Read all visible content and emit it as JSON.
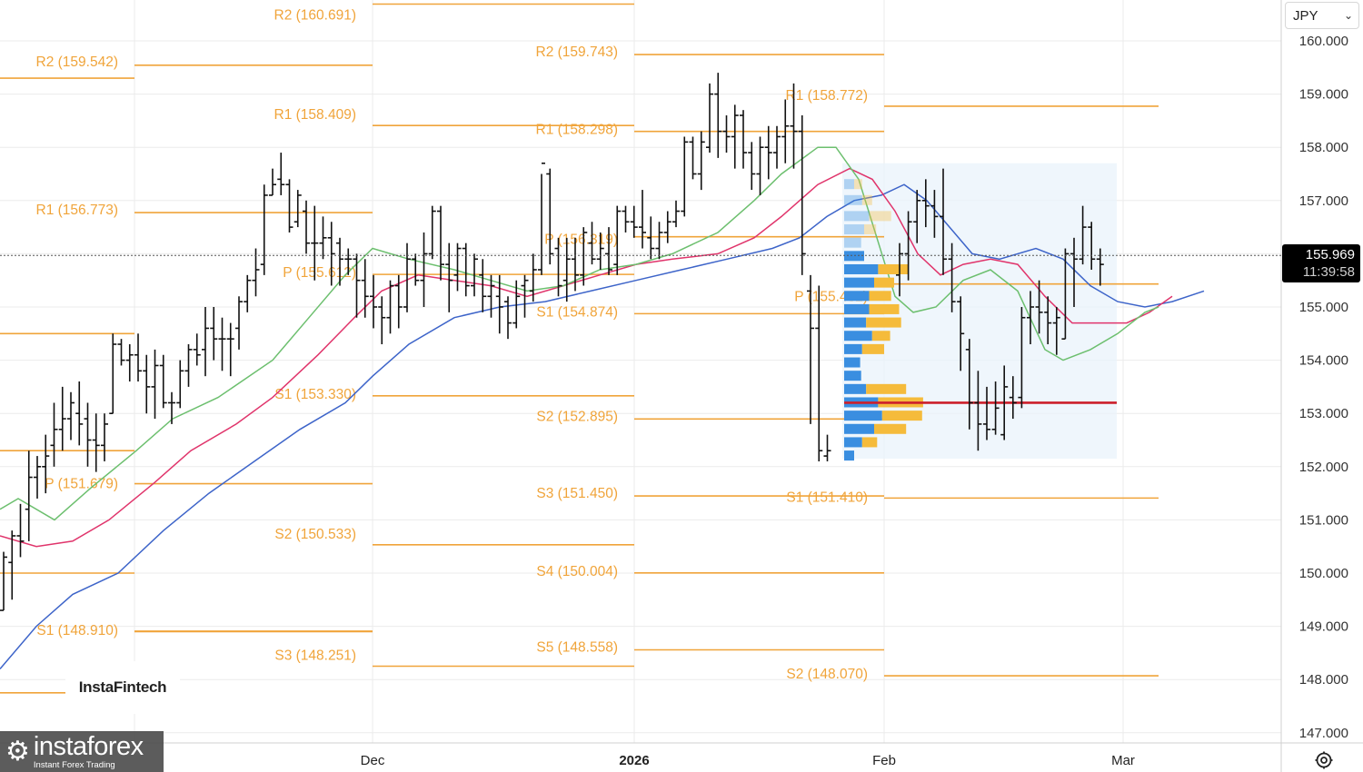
{
  "toolbar": {
    "currency_label": "JPY"
  },
  "current_price": {
    "price": "155.969",
    "countdown": "11:39:58",
    "value": 155.969
  },
  "watermark": {
    "logo": "InstaFintech",
    "brand": "instaforex",
    "tagline": "Instant Forex Trading"
  },
  "icons": {
    "settings": "settings-icon",
    "dropdown": "chevron-down-icon",
    "brand": "gear-logo-icon"
  },
  "colors": {
    "pivot": "#f0a43a",
    "bar": "#111111",
    "ma_fast": "#6cbf6e",
    "ma_mid": "#e0346b",
    "ma_slow": "#3d64c9",
    "poc": "#cc1f2a",
    "vp_buy": "#3a8ee0",
    "vp_sell": "#f5bb3b"
  },
  "chart_data": {
    "type": "ohlc",
    "ylim": [
      146.85,
      161.0
    ],
    "y_ticks": [
      "160.000",
      "159.000",
      "158.000",
      "157.000",
      "156.000",
      "155.000",
      "154.000",
      "153.000",
      "152.000",
      "151.000",
      "150.000",
      "149.000",
      "148.000",
      "147.000"
    ],
    "x_ticks": [
      "Dec",
      "2026",
      "Feb",
      "Mar"
    ],
    "pivot_levels": [
      {
        "label": "R2 (160.691)",
        "value": 160.691
      },
      {
        "label": "R2 (159.542)",
        "value": 159.542
      },
      {
        "label": "R1 (158.409)",
        "value": 158.409
      },
      {
        "label": "R1 (156.773)",
        "value": 156.773
      },
      {
        "label": "P (155.612)",
        "value": 155.612
      },
      {
        "label": "S1 (153.330)",
        "value": 153.33
      },
      {
        "label": "P (151.679)",
        "value": 151.679
      },
      {
        "label": "S2 (150.533)",
        "value": 150.533
      },
      {
        "label": "S1 (148.910)",
        "value": 148.91
      },
      {
        "label": "S3 (148.251)",
        "value": 148.251
      },
      {
        "label": "R2 (159.743)",
        "value": 159.743
      },
      {
        "label": "R1 (158.298)",
        "value": 158.298
      },
      {
        "label": "P (156.319)",
        "value": 156.319
      },
      {
        "label": "S1 (154.874)",
        "value": 154.874
      },
      {
        "label": "S2 (152.895)",
        "value": 152.895
      },
      {
        "label": "S3 (151.450)",
        "value": 151.45
      },
      {
        "label": "S4 (150.004)",
        "value": 150.004
      },
      {
        "label": "S5 (148.558)",
        "value": 148.558
      },
      {
        "label": "R1 (158.772)",
        "value": 158.772
      },
      {
        "label": "P (155.432)",
        "value": 155.432
      },
      {
        "label": "S1 (151.410)",
        "value": 151.41
      },
      {
        "label": "S2 (148.070)",
        "value": 148.07
      }
    ],
    "ohlc_bars": [
      [
        149.3,
        150.4,
        149.3,
        150.3
      ],
      [
        150.2,
        150.8,
        149.5,
        150.7
      ],
      [
        150.7,
        151.3,
        150.3,
        150.6
      ],
      [
        151.2,
        152.3,
        150.6,
        151.8
      ],
      [
        151.8,
        152.2,
        151.4,
        152.0
      ],
      [
        152.0,
        152.6,
        151.5,
        152.2
      ],
      [
        152.4,
        153.2,
        152.0,
        152.7
      ],
      [
        152.7,
        153.5,
        152.3,
        152.9
      ],
      [
        152.9,
        153.4,
        152.5,
        153.2
      ],
      [
        153.0,
        153.6,
        152.4,
        152.8
      ],
      [
        152.9,
        153.2,
        152.0,
        152.5
      ],
      [
        152.5,
        153.0,
        151.9,
        152.4
      ],
      [
        152.4,
        153.0,
        152.1,
        152.8
      ],
      [
        153.0,
        154.5,
        153.0,
        154.3
      ],
      [
        154.3,
        154.4,
        153.9,
        154.0
      ],
      [
        154.0,
        154.3,
        153.6,
        154.1
      ],
      [
        154.1,
        154.5,
        153.6,
        153.8
      ],
      [
        153.8,
        154.1,
        153.0,
        153.5
      ],
      [
        153.5,
        154.2,
        152.9,
        153.9
      ],
      [
        153.9,
        154.1,
        153.1,
        153.2
      ],
      [
        153.2,
        153.4,
        152.8,
        153.2
      ],
      [
        153.2,
        154.0,
        153.1,
        153.8
      ],
      [
        153.8,
        154.3,
        153.5,
        154.2
      ],
      [
        154.2,
        154.5,
        153.9,
        154.1
      ],
      [
        154.2,
        155.0,
        153.7,
        154.6
      ],
      [
        154.6,
        155.0,
        154.0,
        154.4
      ],
      [
        154.4,
        154.8,
        153.8,
        154.4
      ],
      [
        154.4,
        154.7,
        153.7,
        154.4
      ],
      [
        154.6,
        155.2,
        154.2,
        155.1
      ],
      [
        155.1,
        155.6,
        154.9,
        155.5
      ],
      [
        155.5,
        156.1,
        155.2,
        155.7
      ],
      [
        155.8,
        157.3,
        155.6,
        157.1
      ],
      [
        157.1,
        157.6,
        157.1,
        157.3
      ],
      [
        157.4,
        157.9,
        157.1,
        157.3
      ],
      [
        157.3,
        157.4,
        156.4,
        156.5
      ],
      [
        156.6,
        157.2,
        156.5,
        157.1
      ],
      [
        156.8,
        157.0,
        156.0,
        156.2
      ],
      [
        156.2,
        156.9,
        155.5,
        156.2
      ],
      [
        156.2,
        156.7,
        155.9,
        156.3
      ],
      [
        156.3,
        156.6,
        155.4,
        156.0
      ],
      [
        156.2,
        156.3,
        155.4,
        155.9
      ],
      [
        155.9,
        156.1,
        155.6,
        155.9
      ],
      [
        155.9,
        156.0,
        154.8,
        155.5
      ],
      [
        155.5,
        155.9,
        154.8,
        155.2
      ],
      [
        155.2,
        155.6,
        154.6,
        155.0
      ],
      [
        155.0,
        155.2,
        154.3,
        154.8
      ],
      [
        154.8,
        155.5,
        154.5,
        155.4
      ],
      [
        155.4,
        155.6,
        154.6,
        155.0
      ],
      [
        155.0,
        156.2,
        154.9,
        155.9
      ],
      [
        155.9,
        156.0,
        155.4,
        155.5
      ],
      [
        155.5,
        156.4,
        155.0,
        156.0
      ],
      [
        156.0,
        156.9,
        155.9,
        156.8
      ],
      [
        156.8,
        156.9,
        155.5,
        155.8
      ],
      [
        155.8,
        156.2,
        154.9,
        155.5
      ],
      [
        155.6,
        156.2,
        155.3,
        156.1
      ],
      [
        156.1,
        156.2,
        155.2,
        155.4
      ],
      [
        155.4,
        156.0,
        155.2,
        155.9
      ],
      [
        155.6,
        155.9,
        154.9,
        155.2
      ],
      [
        155.2,
        155.6,
        154.8,
        155.4
      ],
      [
        155.2,
        155.6,
        154.5,
        155.0
      ],
      [
        155.1,
        155.2,
        154.4,
        154.7
      ],
      [
        154.7,
        155.5,
        154.6,
        155.2
      ],
      [
        155.4,
        155.6,
        154.8,
        155.5
      ],
      [
        155.3,
        156.0,
        155.1,
        155.7
      ],
      [
        155.7,
        157.5,
        155.6,
        157.7
      ],
      [
        157.5,
        157.6,
        155.8,
        156.0
      ],
      [
        156.1,
        156.3,
        155.2,
        155.4
      ],
      [
        155.5,
        156.3,
        155.1,
        155.9
      ],
      [
        155.9,
        156.3,
        155.3,
        155.6
      ],
      [
        155.6,
        156.5,
        155.4,
        156.4
      ],
      [
        156.2,
        156.6,
        155.8,
        155.9
      ],
      [
        155.9,
        156.4,
        155.7,
        156.1
      ],
      [
        156.0,
        156.5,
        155.6,
        155.7
      ],
      [
        155.8,
        156.9,
        155.6,
        156.8
      ],
      [
        156.8,
        156.9,
        156.4,
        156.6
      ],
      [
        156.6,
        156.9,
        156.3,
        156.5
      ],
      [
        156.5,
        157.2,
        156.1,
        156.4
      ],
      [
        156.3,
        156.7,
        155.9,
        156.1
      ],
      [
        156.1,
        156.6,
        155.9,
        156.4
      ],
      [
        156.4,
        156.8,
        156.2,
        156.6
      ],
      [
        156.6,
        157.0,
        156.5,
        156.8
      ],
      [
        156.8,
        158.2,
        156.7,
        158.1
      ],
      [
        158.1,
        158.2,
        157.4,
        157.5
      ],
      [
        157.5,
        158.3,
        157.2,
        158.1
      ],
      [
        158.0,
        159.2,
        157.9,
        159.0
      ],
      [
        159.0,
        159.4,
        157.8,
        158.3
      ],
      [
        158.3,
        158.6,
        157.9,
        158.2
      ],
      [
        158.2,
        158.8,
        157.6,
        158.6
      ],
      [
        158.6,
        158.7,
        157.6,
        157.9
      ],
      [
        157.9,
        158.1,
        157.2,
        157.5
      ],
      [
        157.5,
        158.2,
        157.1,
        158.0
      ],
      [
        158.0,
        158.4,
        157.4,
        157.9
      ],
      [
        157.9,
        158.4,
        157.6,
        158.2
      ],
      [
        158.2,
        158.9,
        157.7,
        158.4
      ],
      [
        158.4,
        159.2,
        157.6,
        158.3
      ],
      [
        158.3,
        158.6,
        155.6,
        156.0
      ],
      [
        155.3,
        155.6,
        152.8,
        154.6
      ],
      [
        154.6,
        155.4,
        152.1,
        152.3
      ],
      [
        152.2,
        152.6,
        152.1,
        152.3
      ]
    ],
    "ohlc_bars_feb": [
      [
        155.6,
        156.2,
        155.2,
        156.0
      ],
      [
        156.0,
        156.8,
        155.5,
        156.6
      ],
      [
        156.6,
        157.2,
        156.2,
        157.0
      ],
      [
        157.0,
        157.4,
        156.5,
        156.9
      ],
      [
        156.9,
        157.2,
        156.3,
        156.7
      ],
      [
        156.7,
        157.6,
        155.6,
        155.9
      ],
      [
        155.9,
        156.2,
        154.9,
        155.1
      ],
      [
        155.1,
        155.2,
        153.8,
        154.5
      ],
      [
        154.2,
        154.4,
        152.7,
        153.2
      ],
      [
        153.2,
        153.8,
        152.3,
        152.8
      ],
      [
        152.8,
        153.5,
        152.5,
        152.7
      ],
      [
        152.7,
        153.6,
        152.6,
        153.1
      ],
      [
        152.6,
        153.9,
        152.5,
        153.5
      ],
      [
        153.3,
        153.7,
        152.9,
        153.2
      ],
      [
        153.3,
        155.0,
        153.1,
        154.8
      ],
      [
        154.8,
        155.3,
        154.3,
        155.0
      ],
      [
        155.0,
        155.5,
        154.5,
        154.9
      ],
      [
        154.9,
        155.2,
        154.3,
        154.7
      ],
      [
        154.7,
        155.0,
        154.1,
        154.8
      ],
      [
        154.4,
        156.1,
        154.4,
        156.0
      ],
      [
        156.0,
        156.3,
        155.0,
        155.9
      ],
      [
        155.9,
        156.9,
        155.8,
        156.5
      ],
      [
        156.5,
        156.6,
        155.7,
        155.9
      ],
      [
        155.9,
        156.1,
        155.4,
        155.8
      ]
    ],
    "ma_fast": [
      [
        0,
        151.2
      ],
      [
        20,
        151.4
      ],
      [
        60,
        151.0
      ],
      [
        100,
        151.6
      ],
      [
        150,
        152.3
      ],
      [
        190,
        152.9
      ],
      [
        240,
        153.3
      ],
      [
        300,
        154.0
      ],
      [
        340,
        154.8
      ],
      [
        380,
        155.6
      ],
      [
        410,
        156.1
      ],
      [
        450,
        155.9
      ],
      [
        500,
        155.7
      ],
      [
        540,
        155.5
      ],
      [
        580,
        155.3
      ],
      [
        620,
        155.4
      ],
      [
        660,
        155.7
      ],
      [
        700,
        155.8
      ],
      [
        740,
        156.0
      ],
      [
        790,
        156.4
      ],
      [
        830,
        157.0
      ],
      [
        860,
        157.5
      ],
      [
        900,
        158.0
      ],
      [
        920,
        158.0
      ],
      [
        945,
        157.4
      ],
      [
        965,
        156.3
      ],
      [
        985,
        155.2
      ],
      [
        1005,
        154.9
      ],
      [
        1030,
        155.0
      ],
      [
        1060,
        155.5
      ],
      [
        1090,
        155.7
      ],
      [
        1120,
        155.3
      ],
      [
        1150,
        154.2
      ],
      [
        1170,
        154.0
      ],
      [
        1200,
        154.2
      ],
      [
        1230,
        154.5
      ],
      [
        1260,
        154.9
      ],
      [
        1275,
        155.0
      ]
    ],
    "ma_mid": [
      [
        0,
        150.7
      ],
      [
        40,
        150.5
      ],
      [
        80,
        150.6
      ],
      [
        120,
        151.0
      ],
      [
        170,
        151.7
      ],
      [
        210,
        152.3
      ],
      [
        260,
        152.8
      ],
      [
        300,
        153.3
      ],
      [
        350,
        154.1
      ],
      [
        390,
        154.8
      ],
      [
        420,
        155.3
      ],
      [
        460,
        155.6
      ],
      [
        500,
        155.5
      ],
      [
        540,
        155.4
      ],
      [
        580,
        155.2
      ],
      [
        620,
        155.4
      ],
      [
        660,
        155.6
      ],
      [
        700,
        155.8
      ],
      [
        740,
        155.9
      ],
      [
        790,
        156.0
      ],
      [
        830,
        156.3
      ],
      [
        860,
        156.7
      ],
      [
        900,
        157.3
      ],
      [
        935,
        157.6
      ],
      [
        960,
        157.4
      ],
      [
        985,
        156.8
      ],
      [
        1010,
        156.0
      ],
      [
        1035,
        155.6
      ],
      [
        1060,
        155.8
      ],
      [
        1090,
        155.9
      ],
      [
        1120,
        155.8
      ],
      [
        1150,
        155.2
      ],
      [
        1180,
        154.7
      ],
      [
        1210,
        154.7
      ],
      [
        1240,
        154.7
      ],
      [
        1265,
        154.9
      ],
      [
        1290,
        155.2
      ]
    ],
    "ma_slow": [
      [
        0,
        148.2
      ],
      [
        40,
        149.0
      ],
      [
        80,
        149.6
      ],
      [
        130,
        150.0
      ],
      [
        180,
        150.8
      ],
      [
        230,
        151.5
      ],
      [
        280,
        152.1
      ],
      [
        330,
        152.7
      ],
      [
        380,
        153.2
      ],
      [
        410,
        153.7
      ],
      [
        450,
        154.3
      ],
      [
        500,
        154.8
      ],
      [
        550,
        155.0
      ],
      [
        600,
        155.1
      ],
      [
        650,
        155.3
      ],
      [
        700,
        155.5
      ],
      [
        750,
        155.7
      ],
      [
        800,
        155.9
      ],
      [
        850,
        156.1
      ],
      [
        880,
        156.3
      ],
      [
        910,
        156.7
      ],
      [
        940,
        157.0
      ],
      [
        970,
        157.1
      ],
      [
        995,
        157.3
      ],
      [
        1020,
        157.0
      ],
      [
        1045,
        156.5
      ],
      [
        1070,
        156.0
      ],
      [
        1100,
        155.9
      ],
      [
        1140,
        156.1
      ],
      [
        1170,
        155.9
      ],
      [
        1200,
        155.4
      ],
      [
        1230,
        155.1
      ],
      [
        1260,
        155.0
      ],
      [
        1290,
        155.1
      ],
      [
        1325,
        155.3
      ]
    ],
    "poc_level": 153.2,
    "volume_profile": [
      {
        "price": 157.3,
        "buy": 0.1,
        "sell": 0.08,
        "faded": true
      },
      {
        "price": 157.0,
        "buy": 0.18,
        "sell": 0.1,
        "faded": true
      },
      {
        "price": 156.7,
        "buy": 0.25,
        "sell": 0.22,
        "faded": true
      },
      {
        "price": 156.45,
        "buy": 0.2,
        "sell": 0.12,
        "faded": true
      },
      {
        "price": 156.2,
        "buy": 0.17,
        "sell": 0.0,
        "faded": true
      },
      {
        "price": 155.95,
        "buy": 0.2,
        "sell": 0.0,
        "faded": false
      },
      {
        "price": 155.7,
        "buy": 0.34,
        "sell": 0.3,
        "faded": false
      },
      {
        "price": 155.45,
        "buy": 0.3,
        "sell": 0.2,
        "faded": false
      },
      {
        "price": 155.2,
        "buy": 0.25,
        "sell": 0.22,
        "faded": false
      },
      {
        "price": 154.95,
        "buy": 0.25,
        "sell": 0.3,
        "faded": false
      },
      {
        "price": 154.7,
        "buy": 0.22,
        "sell": 0.35,
        "faded": false
      },
      {
        "price": 154.45,
        "buy": 0.28,
        "sell": 0.18,
        "faded": false
      },
      {
        "price": 154.2,
        "buy": 0.18,
        "sell": 0.22,
        "faded": false
      },
      {
        "price": 153.95,
        "buy": 0.16,
        "sell": 0.0,
        "faded": false
      },
      {
        "price": 153.7,
        "buy": 0.17,
        "sell": 0.0,
        "faded": false
      },
      {
        "price": 153.45,
        "buy": 0.22,
        "sell": 0.4,
        "faded": false
      },
      {
        "price": 153.2,
        "buy": 0.34,
        "sell": 0.45,
        "faded": false
      },
      {
        "price": 152.95,
        "buy": 0.38,
        "sell": 0.4,
        "faded": false
      },
      {
        "price": 152.7,
        "buy": 0.3,
        "sell": 0.32,
        "faded": false
      },
      {
        "price": 152.45,
        "buy": 0.18,
        "sell": 0.15,
        "faded": false
      },
      {
        "price": 152.2,
        "buy": 0.1,
        "sell": 0.0,
        "faded": false
      }
    ]
  }
}
